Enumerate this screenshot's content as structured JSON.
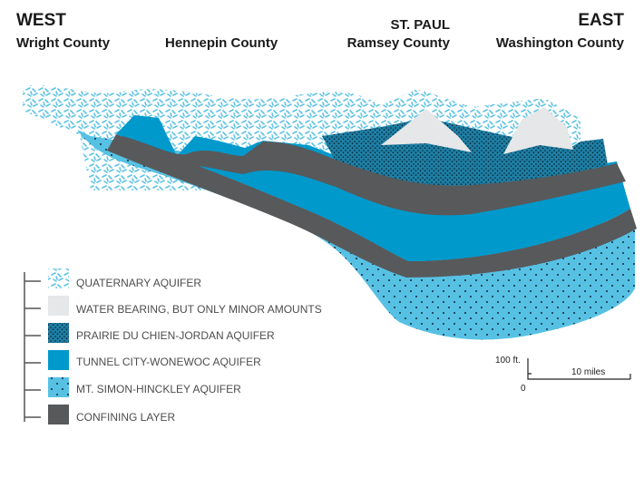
{
  "headers": [
    {
      "title": "WEST",
      "subtitle": "Wright County"
    },
    {
      "subtitle": "Hennepin County"
    },
    {
      "title": "ST. PAUL",
      "subtitle": "Ramsey County"
    },
    {
      "title": "EAST",
      "subtitle": "Washington County"
    }
  ],
  "legend": [
    "QUATERNARY AQUIFER",
    "WATER BEARING, BUT ONLY MINOR AMOUNTS",
    "PRAIRIE DU CHIEN-JORDAN AQUIFER",
    "TUNNEL CITY-WONEWOC AQUIFER",
    "MT. SIMON-HINCKLEY AQUIFER",
    "CONFINING LAYER"
  ],
  "scale": {
    "vertical": "100 ft.",
    "zero": "0",
    "horizontal": "10 miles"
  }
}
